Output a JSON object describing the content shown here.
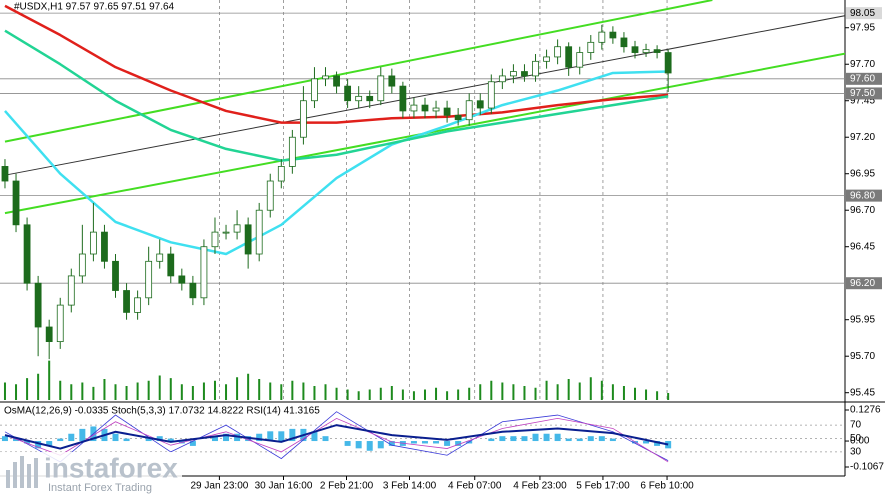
{
  "chart_data": [
    {
      "type": "candlestick",
      "title": "#USDX,H1  97.57 97.65 97.51 97.64",
      "watermark": "instaforex",
      "watermark_tagline": "Instant Forex Trading",
      "xlim": [
        -0.45,
        76
      ],
      "xticks": [
        {
          "value": 19.4,
          "label": "29 Jan 23:00"
        },
        {
          "value": 25.2,
          "label": "30 Jan 16:00"
        },
        {
          "value": 30.9,
          "label": "2 Feb 21:00"
        },
        {
          "value": 36.6,
          "label": "3 Feb 14:00"
        },
        {
          "value": 42.5,
          "label": "4 Feb 07:00"
        },
        {
          "value": 48.4,
          "label": "4 Feb 23:00"
        },
        {
          "value": 54.1,
          "label": "5 Feb 17:00"
        },
        {
          "value": 59.9,
          "label": "6 Feb 10:00"
        }
      ],
      "ylim": [
        95.4,
        98.14
      ],
      "yticks": [
        97.95,
        {
          "value": 97.7,
          "label": "97.70"
        },
        97.45,
        {
          "value": 97.2,
          "label": "97.20"
        },
        96.95,
        {
          "value": 96.7,
          "label": "96.70"
        },
        96.45,
        95.95,
        {
          "value": 95.7,
          "label": "95.70"
        },
        95.45
      ],
      "levels": [
        98.05,
        {
          "value": 97.6,
          "label": "97.60"
        },
        {
          "value": 97.5,
          "label": "97.50"
        },
        {
          "value": 96.8,
          "label": "96.80"
        },
        {
          "value": 96.2,
          "label": "96.20"
        }
      ],
      "grid": true,
      "up_color": "#ffffff",
      "down_color": "#1d6b1d",
      "candle_color": "#1d6b1d",
      "open": [
        97.0,
        96.9,
        96.6,
        96.2,
        95.9,
        95.8,
        96.05,
        96.25,
        96.4,
        96.55,
        96.35,
        96.15,
        96.0,
        96.1,
        96.35,
        96.4,
        96.25,
        96.2,
        96.1,
        96.45,
        96.55,
        96.55,
        96.6,
        96.4,
        96.7,
        96.9,
        97.0,
        97.2,
        97.45,
        97.6,
        97.62,
        97.55,
        97.45,
        97.48,
        97.45,
        97.62,
        97.55,
        97.38,
        97.42,
        97.38,
        97.4,
        97.35,
        97.32,
        97.45,
        97.4,
        97.58,
        97.62,
        97.65,
        97.62,
        97.72,
        97.75,
        97.82,
        97.68,
        97.78,
        97.85,
        97.92,
        97.88,
        97.82,
        97.78,
        97.8,
        97.78
      ],
      "high": [
        97.05,
        96.95,
        96.65,
        96.25,
        95.95,
        96.1,
        96.3,
        96.6,
        96.75,
        96.6,
        96.4,
        96.2,
        96.15,
        96.45,
        96.5,
        96.45,
        96.3,
        96.25,
        96.5,
        96.65,
        96.6,
        96.7,
        96.65,
        96.75,
        96.95,
        97.05,
        97.25,
        97.55,
        97.68,
        97.68,
        97.65,
        97.6,
        97.55,
        97.52,
        97.68,
        97.67,
        97.58,
        97.47,
        97.47,
        97.45,
        97.45,
        97.4,
        97.5,
        97.5,
        97.63,
        97.67,
        97.7,
        97.7,
        97.77,
        97.8,
        97.87,
        97.85,
        97.82,
        97.9,
        97.97,
        97.96,
        97.92,
        97.86,
        97.84,
        97.83,
        97.8
      ],
      "low": [
        96.85,
        96.55,
        96.15,
        95.7,
        95.68,
        95.75,
        96.0,
        96.2,
        96.35,
        96.3,
        96.1,
        95.95,
        95.95,
        96.05,
        96.3,
        96.2,
        96.15,
        96.05,
        96.05,
        96.4,
        96.5,
        96.5,
        96.3,
        96.35,
        96.65,
        96.85,
        96.95,
        97.15,
        97.4,
        97.55,
        97.5,
        97.4,
        97.4,
        97.4,
        97.42,
        97.5,
        97.33,
        97.33,
        97.33,
        97.33,
        97.3,
        97.28,
        97.28,
        97.35,
        97.36,
        97.53,
        97.57,
        97.58,
        97.58,
        97.67,
        97.7,
        97.62,
        97.63,
        97.73,
        97.8,
        97.84,
        97.78,
        97.74,
        97.75,
        97.74,
        97.51
      ],
      "close": [
        96.9,
        96.6,
        96.2,
        95.9,
        95.8,
        96.05,
        96.25,
        96.4,
        96.55,
        96.35,
        96.15,
        96.0,
        96.1,
        96.35,
        96.4,
        96.25,
        96.2,
        96.1,
        96.45,
        96.55,
        96.55,
        96.6,
        96.4,
        96.7,
        96.9,
        97.0,
        97.2,
        97.45,
        97.6,
        97.62,
        97.55,
        97.45,
        97.48,
        97.45,
        97.62,
        97.55,
        97.38,
        97.42,
        97.38,
        97.4,
        97.35,
        97.32,
        97.45,
        97.4,
        97.58,
        97.62,
        97.65,
        97.62,
        97.72,
        97.75,
        97.82,
        97.68,
        97.78,
        97.85,
        97.92,
        97.88,
        97.82,
        97.78,
        97.8,
        97.78,
        97.64
      ],
      "volume_lim": [
        0,
        80
      ],
      "volume_color": "#1d8a1d",
      "volumes": [
        20,
        18,
        25,
        30,
        45,
        22,
        18,
        20,
        15,
        24,
        18,
        16,
        20,
        22,
        28,
        25,
        18,
        16,
        20,
        22,
        18,
        26,
        30,
        24,
        20,
        18,
        22,
        20,
        16,
        18,
        14,
        12,
        10,
        12,
        14,
        16,
        12,
        10,
        12,
        14,
        10,
        12,
        14,
        18,
        22,
        20,
        18,
        16,
        14,
        22,
        18,
        24,
        20,
        26,
        22,
        18,
        16,
        14,
        12,
        10,
        8
      ],
      "series": [
        {
          "color": "#e0201b",
          "width": 2.5,
          "x": [
            0,
            5,
            10,
            15,
            20,
            25,
            30,
            35,
            40,
            45,
            50,
            55,
            60
          ],
          "values": [
            98.1,
            97.9,
            97.68,
            97.52,
            97.38,
            97.3,
            97.3,
            97.33,
            97.34,
            97.37,
            97.42,
            97.46,
            97.49
          ]
        },
        {
          "color": "#3fe0f0",
          "width": 2.5,
          "x": [
            0,
            5,
            10,
            15,
            20,
            25,
            30,
            35,
            40,
            45,
            50,
            55,
            60
          ],
          "values": [
            97.38,
            96.95,
            96.62,
            96.48,
            96.4,
            96.6,
            96.92,
            97.15,
            97.28,
            97.42,
            97.52,
            97.64,
            97.65
          ]
        },
        {
          "color": "#22d494",
          "width": 2.5,
          "x": [
            0,
            5,
            10,
            15,
            20,
            25,
            30,
            35,
            40,
            45,
            50,
            55,
            60
          ],
          "values": [
            97.93,
            97.7,
            97.45,
            97.25,
            97.12,
            97.04,
            97.08,
            97.16,
            97.24,
            97.3,
            97.36,
            97.42,
            97.48
          ]
        }
      ],
      "trendlines": [
        {
          "color": "#44dd22",
          "width": 2,
          "x": [
            0,
            64
          ],
          "values": [
            97.17,
            98.14
          ]
        },
        {
          "color": "#44dd22",
          "width": 2,
          "x": [
            0,
            80
          ],
          "values": [
            96.68,
            97.83
          ]
        },
        {
          "color": "#333333",
          "width": 1,
          "x": [
            0,
            80
          ],
          "values": [
            96.94,
            98.09
          ]
        }
      ]
    },
    {
      "type": "oscillator",
      "title": "OsMA(12,26,9) -0.0335  Stoch(5,3,3) 17.0732 14.8222  RSI(14) 41.3165",
      "ylim": [
        -0.1067,
        0.1276
      ],
      "yticks": [
        0.1276,
        {
          "value": 0,
          "label": "0.00"
        },
        -0.1067
      ],
      "y2lim": [
        0,
        100
      ],
      "y2ticks": [
        70,
        50,
        30
      ],
      "osma_color": "#45b8e8",
      "osma": [
        0.02,
        0.01,
        -0.01,
        -0.03,
        -0.02,
        0.01,
        0.03,
        0.05,
        0.06,
        0.05,
        0.03,
        0.01,
        0.0,
        0.01,
        0.02,
        0.01,
        -0.01,
        -0.02,
        0.0,
        0.02,
        0.03,
        0.03,
        0.02,
        0.03,
        0.04,
        0.04,
        0.05,
        0.05,
        0.04,
        0.02,
        0.0,
        -0.02,
        -0.03,
        -0.04,
        -0.03,
        -0.02,
        -0.02,
        -0.01,
        -0.01,
        -0.01,
        -0.02,
        -0.02,
        -0.01,
        0.0,
        0.01,
        0.02,
        0.02,
        0.02,
        0.03,
        0.03,
        0.03,
        0.01,
        0.01,
        0.02,
        0.02,
        0.01,
        0.0,
        -0.01,
        -0.01,
        -0.02,
        -0.03
      ],
      "series": [
        {
          "color": "#3a3ad8",
          "width": 0.8,
          "axis": "y2",
          "x": [
            0,
            5,
            10,
            15,
            20,
            25,
            30,
            35,
            40,
            45,
            50,
            55,
            60
          ],
          "values": [
            60,
            15,
            85,
            30,
            70,
            20,
            90,
            40,
            25,
            75,
            85,
            60,
            17
          ]
        },
        {
          "color": "#c040c0",
          "width": 0.8,
          "axis": "y2",
          "x": [
            0,
            5,
            10,
            15,
            20,
            25,
            30,
            35,
            40,
            45,
            50,
            55,
            60
          ],
          "values": [
            55,
            25,
            75,
            40,
            60,
            30,
            80,
            45,
            35,
            65,
            80,
            65,
            15
          ]
        },
        {
          "color": "#0a1f8f",
          "width": 2,
          "axis": "y2",
          "x": [
            0,
            5,
            10,
            15,
            20,
            25,
            30,
            35,
            40,
            45,
            50,
            55,
            60
          ],
          "values": [
            55,
            35,
            60,
            45,
            55,
            45,
            70,
            55,
            48,
            60,
            65,
            58,
            41
          ]
        }
      ]
    }
  ]
}
